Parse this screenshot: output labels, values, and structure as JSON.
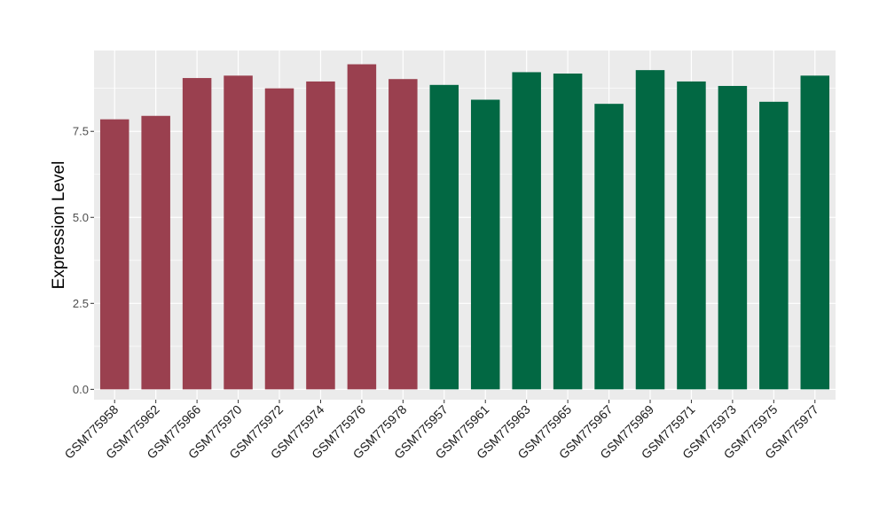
{
  "chart_data": {
    "type": "bar",
    "title": "",
    "xlabel": "",
    "ylabel": "Expression Level",
    "ylim": [
      -0.3,
      9.85
    ],
    "yticks": [
      0.0,
      2.5,
      5.0,
      7.5
    ],
    "ytick_labels": [
      "0.0",
      "2.5",
      "5.0",
      "7.5"
    ],
    "grid": true,
    "legend": "none",
    "panel_background": "#ebebeb",
    "grid_color": "#ffffff",
    "categories": [
      "GSM775958",
      "GSM775962",
      "GSM775966",
      "GSM775970",
      "GSM775972",
      "GSM775974",
      "GSM775976",
      "GSM775978",
      "GSM775957",
      "GSM775961",
      "GSM775963",
      "GSM775965",
      "GSM775967",
      "GSM775969",
      "GSM775971",
      "GSM775973",
      "GSM775975",
      "GSM775977"
    ],
    "values": [
      7.85,
      7.95,
      9.05,
      9.12,
      8.75,
      8.95,
      9.45,
      9.02,
      8.85,
      8.42,
      9.22,
      9.18,
      8.3,
      9.28,
      8.95,
      8.82,
      8.36,
      9.12
    ],
    "bar_colors": [
      "#9a404f",
      "#9a404f",
      "#9a404f",
      "#9a404f",
      "#9a404f",
      "#9a404f",
      "#9a404f",
      "#9a404f",
      "#026843",
      "#026843",
      "#026843",
      "#026843",
      "#026843",
      "#026843",
      "#026843",
      "#026843",
      "#026843",
      "#026843"
    ]
  }
}
